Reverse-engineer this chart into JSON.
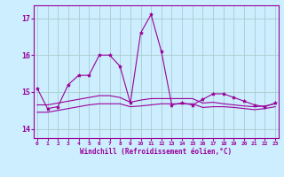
{
  "title": "",
  "xlabel": "Windchill (Refroidissement éolien,°C)",
  "ylabel": "",
  "bg_color": "#cceeff",
  "grid_color": "#aacccc",
  "line_color": "#990099",
  "x_ticks": [
    0,
    1,
    2,
    3,
    4,
    5,
    6,
    7,
    8,
    9,
    10,
    11,
    12,
    13,
    14,
    15,
    16,
    17,
    18,
    19,
    20,
    21,
    22,
    23
  ],
  "y_ticks": [
    14,
    15,
    16,
    17
  ],
  "ylim": [
    13.75,
    17.35
  ],
  "xlim": [
    -0.3,
    23.3
  ],
  "series1": [
    15.1,
    14.55,
    14.6,
    15.2,
    15.45,
    15.45,
    16.0,
    16.0,
    15.7,
    14.7,
    16.6,
    17.1,
    16.1,
    14.65,
    14.7,
    14.65,
    14.8,
    14.95,
    14.95,
    14.85,
    14.75,
    14.65,
    14.6,
    14.7
  ],
  "series2": [
    14.65,
    14.65,
    14.7,
    14.75,
    14.8,
    14.85,
    14.9,
    14.9,
    14.85,
    14.72,
    14.78,
    14.82,
    14.82,
    14.82,
    14.82,
    14.82,
    14.7,
    14.72,
    14.68,
    14.65,
    14.62,
    14.6,
    14.62,
    14.68
  ],
  "series3": [
    14.45,
    14.45,
    14.5,
    14.55,
    14.6,
    14.65,
    14.68,
    14.68,
    14.68,
    14.6,
    14.62,
    14.65,
    14.68,
    14.68,
    14.68,
    14.68,
    14.58,
    14.6,
    14.6,
    14.58,
    14.55,
    14.52,
    14.55,
    14.6
  ]
}
